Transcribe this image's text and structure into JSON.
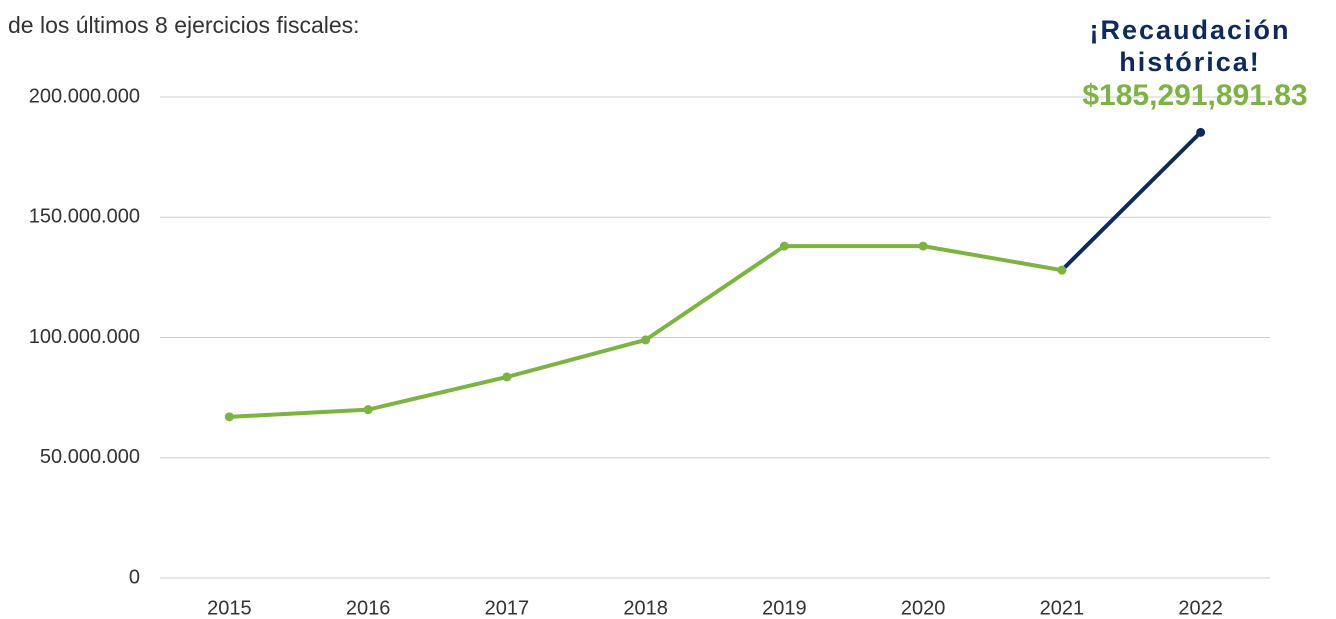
{
  "chart_data": {
    "type": "line",
    "subtitle": "de los últimos 8 ejercicios fiscales:",
    "annotation": "¡Recaudación histórica!",
    "categories": [
      "2015",
      "2016",
      "2017",
      "2018",
      "2019",
      "2020",
      "2021",
      "2022"
    ],
    "values": [
      67000000,
      70000000,
      83600000,
      99000000,
      138000000,
      138000000,
      128000000,
      185291891.83
    ],
    "value_labels": [
      null,
      null,
      null,
      null,
      null,
      null,
      null,
      "$185,291,891.83"
    ],
    "color": "#7cb342",
    "segment_colors": [
      "#7cb342",
      "#7cb342",
      "#7cb342",
      "#7cb342",
      "#7cb342",
      "#7cb342",
      "#0d2a5c"
    ],
    "ylim": [
      0,
      200000000
    ],
    "yticks": [
      0,
      {
        "value": 50000000,
        "label": "50.000.000"
      },
      {
        "value": 100000000,
        "label": "100.000.000"
      },
      {
        "value": 150000000,
        "label": "150.000.000"
      },
      {
        "value": 200000000,
        "label": "200.000.000"
      }
    ],
    "grid": true
  }
}
